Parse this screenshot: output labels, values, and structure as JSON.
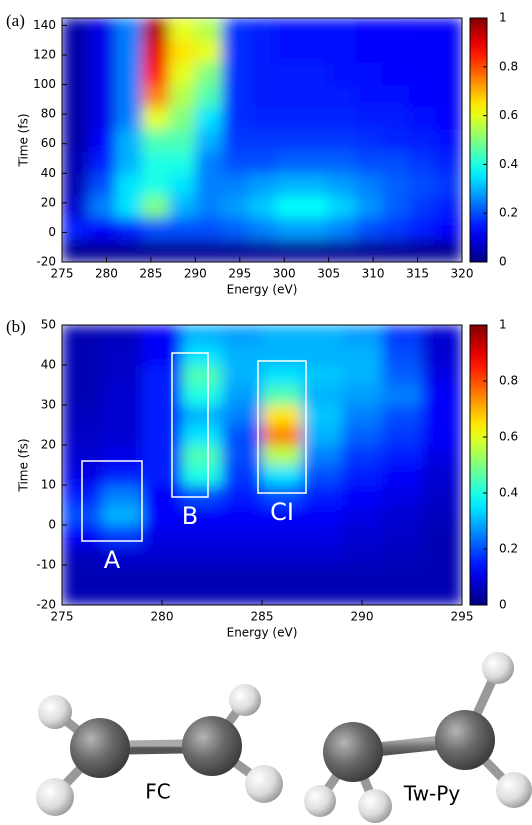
{
  "chart_data": [
    {
      "type": "heatmap",
      "panel_label": "(a)",
      "xlabel": "Energy (eV)",
      "ylabel": "Time (fs)",
      "xlim": [
        275,
        320
      ],
      "ylim": [
        -20,
        145
      ],
      "xticks": [
        275,
        280,
        285,
        290,
        295,
        300,
        305,
        310,
        315,
        320
      ],
      "yticks": [
        -20,
        0,
        20,
        40,
        60,
        80,
        100,
        120,
        140
      ],
      "colormap": "jet",
      "zlim": [
        0,
        1
      ],
      "zticks": [
        0,
        0.2,
        0.4,
        0.6,
        0.8,
        1
      ],
      "xbins": [
        275,
        278,
        281,
        284,
        287,
        290,
        293,
        296,
        299,
        302,
        305,
        308,
        311,
        314,
        317,
        320
      ],
      "ybins": [
        -20,
        -5,
        10,
        25,
        40,
        55,
        70,
        85,
        100,
        115,
        130,
        145
      ],
      "z": [
        [
          0.02,
          0.02,
          0.02,
          0.02,
          0.02,
          0.02,
          0.02,
          0.02,
          0.02,
          0.02,
          0.02,
          0.02,
          0.02,
          0.02,
          0.02
        ],
        [
          0.15,
          0.12,
          0.15,
          0.2,
          0.2,
          0.2,
          0.22,
          0.25,
          0.28,
          0.28,
          0.25,
          0.2,
          0.18,
          0.15,
          0.12
        ],
        [
          0.08,
          0.25,
          0.35,
          0.5,
          0.3,
          0.25,
          0.28,
          0.32,
          0.38,
          0.38,
          0.33,
          0.27,
          0.22,
          0.18,
          0.15
        ],
        [
          0.05,
          0.2,
          0.35,
          0.4,
          0.35,
          0.25,
          0.25,
          0.28,
          0.3,
          0.3,
          0.28,
          0.25,
          0.22,
          0.2,
          0.18
        ],
        [
          0.05,
          0.15,
          0.3,
          0.4,
          0.4,
          0.25,
          0.2,
          0.2,
          0.22,
          0.22,
          0.22,
          0.2,
          0.2,
          0.18,
          0.16
        ],
        [
          0.04,
          0.12,
          0.3,
          0.45,
          0.45,
          0.3,
          0.18,
          0.18,
          0.18,
          0.18,
          0.18,
          0.17,
          0.16,
          0.15,
          0.14
        ],
        [
          0.04,
          0.1,
          0.25,
          0.6,
          0.5,
          0.35,
          0.17,
          0.16,
          0.16,
          0.16,
          0.16,
          0.15,
          0.15,
          0.14,
          0.13
        ],
        [
          0.04,
          0.1,
          0.25,
          0.75,
          0.55,
          0.45,
          0.17,
          0.15,
          0.15,
          0.15,
          0.15,
          0.14,
          0.14,
          0.13,
          0.12
        ],
        [
          0.04,
          0.1,
          0.25,
          0.85,
          0.6,
          0.5,
          0.17,
          0.15,
          0.15,
          0.15,
          0.14,
          0.14,
          0.13,
          0.13,
          0.12
        ],
        [
          0.04,
          0.1,
          0.25,
          0.9,
          0.65,
          0.6,
          0.17,
          0.15,
          0.14,
          0.14,
          0.14,
          0.13,
          0.13,
          0.12,
          0.12
        ],
        [
          0.04,
          0.1,
          0.25,
          0.95,
          0.6,
          0.55,
          0.17,
          0.15,
          0.14,
          0.14,
          0.14,
          0.13,
          0.13,
          0.12,
          0.12
        ]
      ]
    },
    {
      "type": "heatmap",
      "panel_label": "(b)",
      "xlabel": "Energy (eV)",
      "ylabel": "Time (fs)",
      "xlim": [
        275,
        295
      ],
      "ylim": [
        -20,
        50
      ],
      "xticks": [
        275,
        280,
        285,
        290,
        295
      ],
      "yticks": [
        -20,
        -10,
        0,
        10,
        20,
        30,
        40,
        50
      ],
      "colormap": "jet",
      "zlim": [
        0,
        1
      ],
      "zticks": [
        0,
        0.2,
        0.4,
        0.6,
        0.8,
        1
      ],
      "xbins": [
        275,
        277,
        279,
        281,
        283,
        285,
        287,
        289,
        291,
        293,
        295
      ],
      "ybins": [
        -20,
        -15,
        -10,
        -5,
        0,
        5,
        10,
        15,
        20,
        25,
        30,
        35,
        40,
        45,
        50
      ],
      "z": [
        [
          0.05,
          0.05,
          0.05,
          0.05,
          0.05,
          0.05,
          0.05,
          0.05,
          0.05,
          0.05
        ],
        [
          0.05,
          0.05,
          0.05,
          0.05,
          0.05,
          0.05,
          0.05,
          0.05,
          0.05,
          0.05
        ],
        [
          0.06,
          0.08,
          0.08,
          0.08,
          0.08,
          0.08,
          0.08,
          0.07,
          0.06,
          0.05
        ],
        [
          0.12,
          0.18,
          0.1,
          0.1,
          0.1,
          0.1,
          0.1,
          0.08,
          0.07,
          0.05
        ],
        [
          0.2,
          0.3,
          0.12,
          0.12,
          0.12,
          0.12,
          0.12,
          0.1,
          0.08,
          0.06
        ],
        [
          0.15,
          0.25,
          0.12,
          0.2,
          0.15,
          0.2,
          0.15,
          0.12,
          0.1,
          0.07
        ],
        [
          0.1,
          0.15,
          0.15,
          0.4,
          0.18,
          0.35,
          0.2,
          0.15,
          0.12,
          0.08
        ],
        [
          0.08,
          0.1,
          0.15,
          0.45,
          0.2,
          0.55,
          0.25,
          0.18,
          0.15,
          0.1
        ],
        [
          0.07,
          0.08,
          0.15,
          0.35,
          0.2,
          0.75,
          0.3,
          0.22,
          0.18,
          0.12
        ],
        [
          0.06,
          0.08,
          0.15,
          0.3,
          0.25,
          0.65,
          0.32,
          0.25,
          0.2,
          0.12
        ],
        [
          0.05,
          0.08,
          0.15,
          0.4,
          0.28,
          0.45,
          0.3,
          0.28,
          0.25,
          0.12
        ],
        [
          0.05,
          0.07,
          0.15,
          0.45,
          0.3,
          0.35,
          0.32,
          0.3,
          0.22,
          0.1
        ],
        [
          0.05,
          0.07,
          0.12,
          0.35,
          0.3,
          0.3,
          0.3,
          0.3,
          0.2,
          0.08
        ],
        [
          0.05,
          0.06,
          0.12,
          0.3,
          0.28,
          0.3,
          0.3,
          0.28,
          0.18,
          0.08
        ]
      ],
      "annotations": [
        {
          "text": "A",
          "x": [
            276,
            279
          ],
          "y": [
            -4,
            16
          ]
        },
        {
          "text": "B",
          "x": [
            280.5,
            282.3
          ],
          "y": [
            7,
            43
          ]
        },
        {
          "text": "CI",
          "x": [
            284.8,
            287.2
          ],
          "y": [
            8,
            41
          ]
        }
      ]
    }
  ],
  "structures": [
    {
      "label": "FC"
    },
    {
      "label": "Tw-Py"
    }
  ]
}
